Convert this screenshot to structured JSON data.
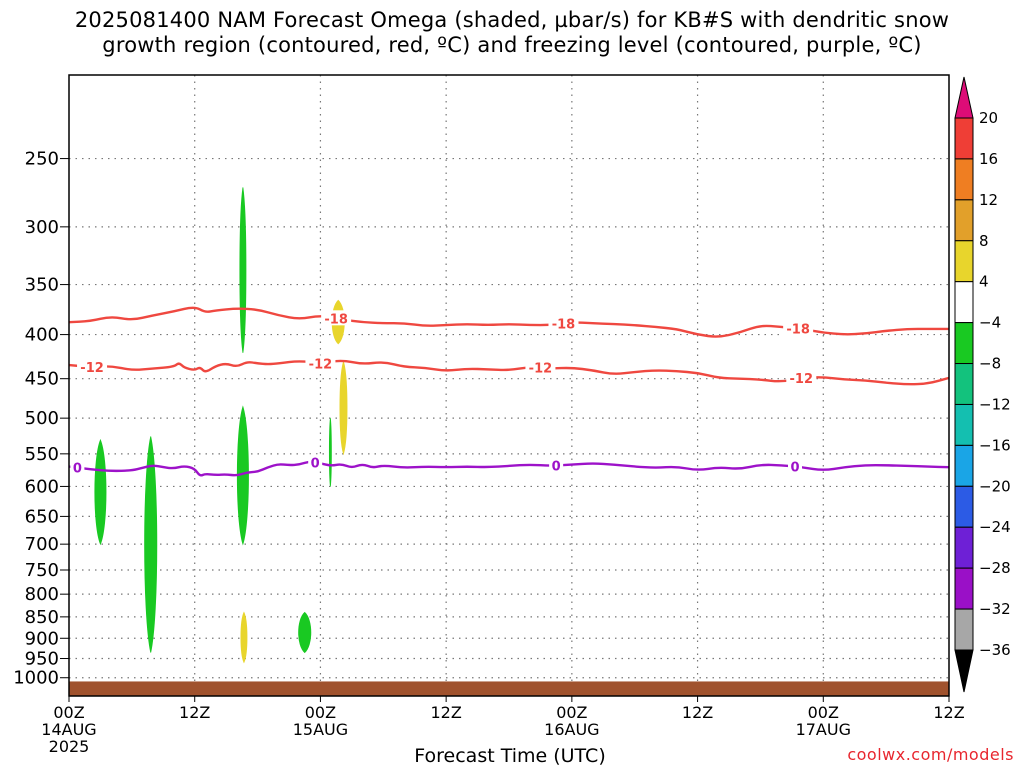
{
  "title": {
    "line1": "2025081400 NAM Forecast Omega (shaded, µbar/s) for KB#S with dendritic snow",
    "line2": "growth region (contoured, red, ºC) and freezing level (contoured, purple, ºC)"
  },
  "xlabel": "Forecast Time (UTC)",
  "credit": "coolwx.com/models",
  "chart_data": {
    "type": "heatmap",
    "xlabel": "Forecast Time (UTC)",
    "ylabel": "",
    "x_unit": "forecast hour",
    "xlim": [
      0,
      84
    ],
    "ylim": [
      1050,
      200
    ],
    "y_scale": "log-pressure (hPa)",
    "yticks": [
      250,
      300,
      350,
      400,
      450,
      500,
      550,
      600,
      650,
      700,
      750,
      800,
      850,
      900,
      950,
      1000
    ],
    "xticks": [
      {
        "x": 0,
        "l1": "00Z",
        "l2": "14AUG",
        "l3": "2025"
      },
      {
        "x": 12,
        "l1": "12Z",
        "l2": "",
        "l3": ""
      },
      {
        "x": 24,
        "l1": "00Z",
        "l2": "15AUG",
        "l3": ""
      },
      {
        "x": 36,
        "l1": "12Z",
        "l2": "",
        "l3": ""
      },
      {
        "x": 48,
        "l1": "00Z",
        "l2": "16AUG",
        "l3": ""
      },
      {
        "x": 60,
        "l1": "12Z",
        "l2": "",
        "l3": ""
      },
      {
        "x": 72,
        "l1": "00Z",
        "l2": "17AUG",
        "l3": ""
      },
      {
        "x": 84,
        "l1": "12Z",
        "l2": "",
        "l3": ""
      }
    ],
    "grid": "dotted",
    "colorbar": {
      "unit": "µbar/s",
      "labels": [
        "20",
        "16",
        "12",
        "8",
        "4",
        "−4",
        "−8",
        "−12",
        "−16",
        "−20",
        "−24",
        "−28",
        "−32",
        "−36"
      ],
      "colors": [
        "#dd0c77",
        "#ef3e36",
        "#ef7e22",
        "#e2a02a",
        "#e8d52c",
        "#ffffff",
        "#19c922",
        "#13c27d",
        "#14bfb0",
        "#1aa5e6",
        "#2c5be5",
        "#6e20d6",
        "#9a10c7",
        "#a7a7a7",
        "#000000"
      ]
    },
    "contours": [
      {
        "name": "-18",
        "color": "#ef4840",
        "x": [
          0,
          2,
          4,
          6,
          8,
          10,
          12,
          13,
          14,
          16,
          18,
          20,
          22,
          24,
          26,
          28,
          30,
          32,
          34,
          36,
          38,
          40,
          42,
          44,
          46,
          48,
          50,
          52,
          54,
          56,
          58,
          60,
          62,
          64,
          66,
          68,
          70,
          72,
          74,
          76,
          78,
          80,
          82,
          84
        ],
        "y": [
          387,
          386,
          381,
          385,
          380,
          376,
          371,
          377,
          375,
          373,
          374,
          380,
          384,
          380,
          384,
          387,
          388,
          388,
          391,
          390,
          389,
          390,
          389,
          390,
          390,
          387,
          388,
          389,
          390,
          392,
          394,
          400,
          403,
          398,
          390,
          392,
          394,
          398,
          400,
          399,
          396,
          394,
          394,
          394
        ],
        "labels": [
          {
            "x": 25.5,
            "text": "-18"
          },
          {
            "x": 47.2,
            "text": "-18"
          },
          {
            "x": 69.6,
            "text": "-18"
          }
        ]
      },
      {
        "name": "-12",
        "color": "#ef4840",
        "x": [
          0,
          2,
          4,
          6,
          8,
          10,
          10.5,
          11,
          12,
          12.5,
          13,
          14,
          15,
          16,
          17,
          18,
          19,
          20,
          22,
          24,
          26,
          28,
          30,
          32,
          34,
          36,
          38,
          40,
          42,
          44,
          46,
          48,
          50,
          52,
          54,
          56,
          58,
          60,
          62,
          64,
          66,
          68,
          70,
          72,
          74,
          76,
          78,
          80,
          82,
          84
        ],
        "y": [
          434,
          436,
          435,
          440,
          438,
          436,
          431,
          437,
          440,
          436,
          443,
          435,
          432,
          436,
          430,
          432,
          433,
          432,
          429,
          432,
          428,
          433,
          430,
          436,
          437,
          441,
          438,
          439,
          440,
          436,
          438,
          437,
          440,
          445,
          442,
          440,
          441,
          443,
          449,
          450,
          451,
          454,
          449,
          448,
          451,
          452,
          455,
          457,
          456,
          449
        ],
        "labels": [
          {
            "x": 2.2,
            "text": "-12"
          },
          {
            "x": 24.0,
            "text": "-12"
          },
          {
            "x": 45.0,
            "text": "-12"
          },
          {
            "x": 69.9,
            "text": "-12"
          }
        ]
      },
      {
        "name": "0",
        "color": "#9d12c9",
        "x": [
          0,
          2,
          4,
          6,
          7,
          8,
          9,
          10,
          11,
          12,
          12.5,
          13,
          14,
          15,
          16,
          17,
          18,
          19,
          20,
          21,
          22,
          23,
          24,
          25,
          26,
          27,
          28,
          29,
          30,
          32,
          34,
          36,
          38,
          40,
          42,
          44,
          46,
          48,
          50,
          52,
          54,
          56,
          58,
          60,
          62,
          64,
          66,
          68,
          70,
          72,
          74,
          76,
          78,
          80,
          82,
          84
        ],
        "y": [
          569,
          573,
          576,
          575,
          571,
          567,
          570,
          572,
          568,
          572,
          584,
          580,
          582,
          581,
          583,
          578,
          577,
          570,
          565,
          567,
          566,
          561,
          564,
          568,
          565,
          571,
          565,
          571,
          567,
          571,
          569,
          570,
          569,
          570,
          568,
          566,
          568,
          566,
          564,
          566,
          569,
          571,
          569,
          575,
          570,
          573,
          566,
          567,
          570,
          575,
          570,
          567,
          567,
          568,
          569,
          570
        ],
        "labels": [
          {
            "x": 0.8,
            "text": "0"
          },
          {
            "x": 23.5,
            "text": "0"
          },
          {
            "x": 46.5,
            "text": "0"
          },
          {
            "x": 69.3,
            "text": "0"
          }
        ]
      }
    ],
    "omega_regions": [
      {
        "color": "#19c922",
        "range": "-8 to -4",
        "x": 16.6,
        "p_top": 270,
        "p_bottom": 420,
        "half_width_h": 0.3
      },
      {
        "color": "#19c922",
        "range": "-8 to -4",
        "x": 16.6,
        "p_top": 485,
        "p_bottom": 700,
        "half_width_h": 0.55
      },
      {
        "color": "#19c922",
        "range": "-8 to -4",
        "x": 3.0,
        "p_top": 530,
        "p_bottom": 700,
        "half_width_h": 0.55
      },
      {
        "color": "#19c922",
        "range": "-8 to -4",
        "x": 7.8,
        "p_top": 525,
        "p_bottom": 935,
        "half_width_h": 0.6
      },
      {
        "color": "#19c922",
        "range": "-8 to -4",
        "x": 22.5,
        "p_top": 840,
        "p_bottom": 935,
        "half_width_h": 0.6
      },
      {
        "color": "#19c922",
        "range": "-8 to -4",
        "x": 24.95,
        "p_top": 500,
        "p_bottom": 600,
        "half_width_h": 0.1
      },
      {
        "color": "#e8d52c",
        "range": "4 to 8",
        "x": 25.7,
        "p_top": 365,
        "p_bottom": 410,
        "half_width_h": 0.6
      },
      {
        "color": "#e8d52c",
        "range": "4 to 8",
        "x": 26.2,
        "p_top": 430,
        "p_bottom": 550,
        "half_width_h": 0.35
      },
      {
        "color": "#e8d52c",
        "range": "4 to 8",
        "x": 16.7,
        "p_top": 840,
        "p_bottom": 960,
        "half_width_h": 0.3
      }
    ],
    "terrain": {
      "color": "#a0522d",
      "p_top": 1010,
      "p_bottom": 1050
    }
  }
}
